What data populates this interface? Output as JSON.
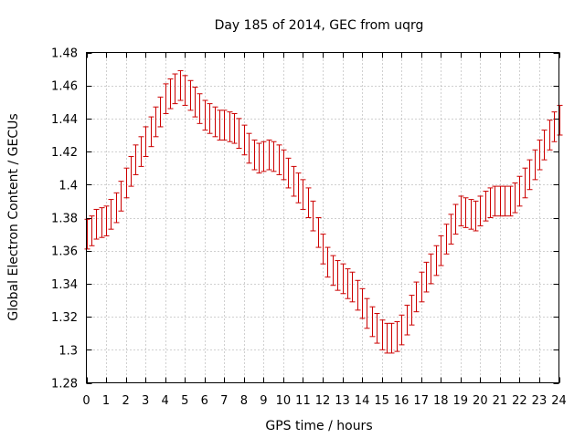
{
  "chart_data": {
    "type": "scatter",
    "title": "Day 185 of 2014, GEC from uqrg",
    "xlabel": "GPS time / hours",
    "ylabel": "Global Electron Content / GECUs",
    "xlim": [
      0,
      24
    ],
    "ylim": [
      1.28,
      1.48
    ],
    "xticks": [
      0,
      1,
      2,
      3,
      4,
      5,
      6,
      7,
      8,
      9,
      10,
      11,
      12,
      13,
      14,
      15,
      16,
      17,
      18,
      19,
      20,
      21,
      22,
      23,
      24
    ],
    "yticks": [
      1.28,
      1.3,
      1.32,
      1.34,
      1.36,
      1.38,
      1.4,
      1.42,
      1.44,
      1.46,
      1.48
    ],
    "ytick_labels": [
      "1.28",
      "1.3",
      "1.32",
      "1.34",
      "1.36",
      "1.38",
      "1.4",
      "1.42",
      "1.44",
      "1.46",
      "1.48"
    ],
    "grid": true,
    "error_bar_halfwidth": 0.009,
    "series_color": "#cc0000",
    "x": [
      0,
      0.25,
      0.5,
      0.75,
      1,
      1.25,
      1.5,
      1.75,
      2,
      2.25,
      2.5,
      2.75,
      3,
      3.25,
      3.5,
      3.75,
      4,
      4.25,
      4.5,
      4.75,
      5,
      5.25,
      5.5,
      5.75,
      6,
      6.25,
      6.5,
      6.75,
      7,
      7.25,
      7.5,
      7.75,
      8,
      8.25,
      8.5,
      8.75,
      9,
      9.25,
      9.5,
      9.75,
      10,
      10.25,
      10.5,
      10.75,
      11,
      11.25,
      11.5,
      11.75,
      12,
      12.25,
      12.5,
      12.75,
      13,
      13.25,
      13.5,
      13.75,
      14,
      14.25,
      14.5,
      14.75,
      15,
      15.25,
      15.5,
      15.75,
      16,
      16.25,
      16.5,
      16.75,
      17,
      17.25,
      17.5,
      17.75,
      18,
      18.25,
      18.5,
      18.75,
      19,
      19.25,
      19.5,
      19.75,
      20,
      20.25,
      20.5,
      20.75,
      21,
      21.25,
      21.5,
      21.75,
      22,
      22.25,
      22.5,
      22.75,
      23,
      23.25,
      23.5,
      23.75,
      24
    ],
    "y": [
      1.37,
      1.372,
      1.376,
      1.377,
      1.378,
      1.382,
      1.386,
      1.393,
      1.401,
      1.408,
      1.415,
      1.42,
      1.426,
      1.432,
      1.438,
      1.444,
      1.452,
      1.455,
      1.458,
      1.46,
      1.457,
      1.454,
      1.45,
      1.446,
      1.442,
      1.44,
      1.438,
      1.436,
      1.436,
      1.435,
      1.434,
      1.431,
      1.427,
      1.422,
      1.418,
      1.416,
      1.417,
      1.418,
      1.417,
      1.415,
      1.412,
      1.407,
      1.402,
      1.398,
      1.394,
      1.389,
      1.381,
      1.371,
      1.361,
      1.353,
      1.348,
      1.345,
      1.343,
      1.34,
      1.338,
      1.333,
      1.328,
      1.322,
      1.317,
      1.313,
      1.309,
      1.307,
      1.307,
      1.308,
      1.312,
      1.318,
      1.324,
      1.332,
      1.338,
      1.344,
      1.349,
      1.354,
      1.36,
      1.367,
      1.373,
      1.379,
      1.384,
      1.383,
      1.382,
      1.381,
      1.384,
      1.387,
      1.389,
      1.39,
      1.39,
      1.39,
      1.39,
      1.392,
      1.396,
      1.401,
      1.406,
      1.412,
      1.418,
      1.424,
      1.43,
      1.435,
      1.439
    ]
  }
}
